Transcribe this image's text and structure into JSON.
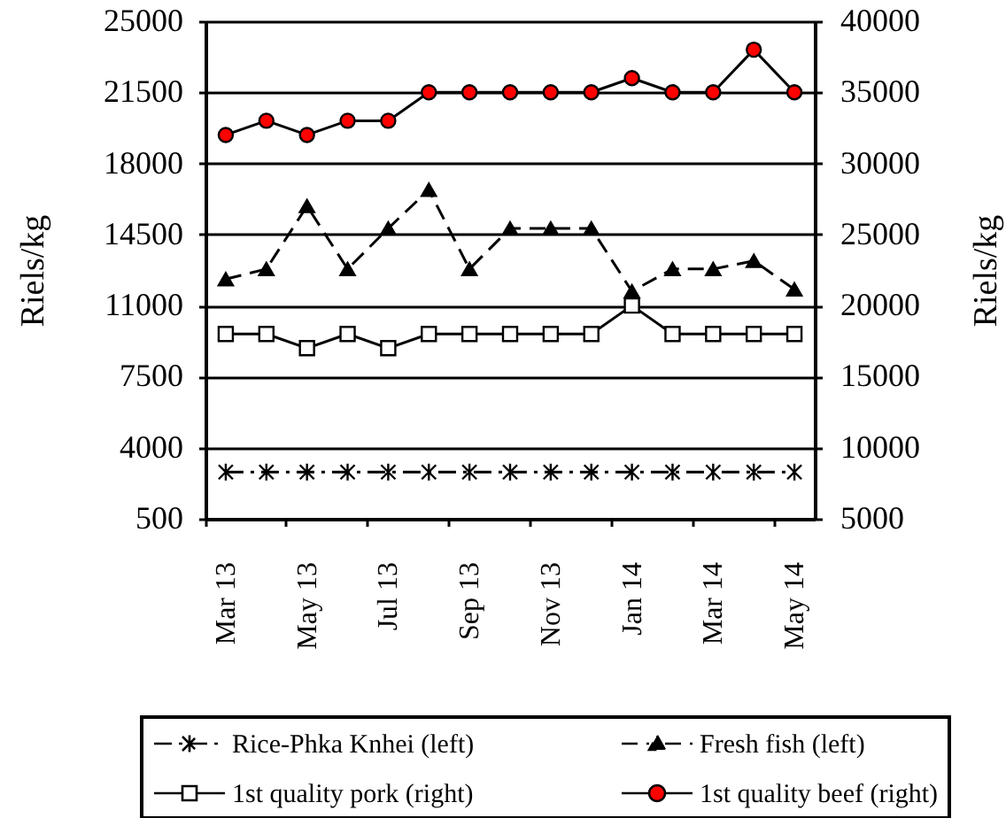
{
  "chart_data": {
    "type": "line",
    "ylabel": "Riels/kg",
    "y2label": "Riels/kg",
    "categories": [
      "Mar 13",
      null,
      "May 13",
      null,
      "Jul 13",
      null,
      "Sep 13",
      null,
      "Nov 13",
      null,
      "Jan 14",
      null,
      "Mar 14",
      null,
      "May 14"
    ],
    "ylim": [
      500,
      25000
    ],
    "yticks": [
      500,
      4000,
      7500,
      11000,
      14500,
      18000,
      21500,
      25000
    ],
    "y2lim": [
      5000,
      40000
    ],
    "y2ticks": [
      5000,
      10000,
      15000,
      20000,
      25000,
      30000,
      35000,
      40000
    ],
    "grid": "y",
    "legend": "bottom",
    "series": [
      {
        "name": "Rice-Phka Knhei (left)",
        "color": "#000000",
        "marker": "cross",
        "line_style": "dashdot",
        "values": [
          2800,
          2800,
          2800,
          2800,
          2800,
          2800,
          2800,
          2800,
          2800,
          2800,
          2800,
          2800,
          2800,
          2800,
          2800
        ]
      },
      {
        "name": "Fresh fish (left)",
        "color": "#000000",
        "marker": "triangle",
        "line_style": "dashed",
        "values": [
          12300,
          12800,
          15900,
          12800,
          14800,
          16700,
          12800,
          14800,
          14800,
          14800,
          11700,
          12800,
          12800,
          13200,
          11800
        ]
      },
      {
        "name": "1st quality pork (right)",
        "color": "#000000",
        "colors": [
          "#ffffff",
          "#ffffff",
          "#ffffff",
          "#ffffff",
          "#ffffff",
          "#ffffff",
          "#ffffff",
          "#ffffff",
          "#ffffff",
          "#ffffff",
          "#ffffff",
          "#ffffff",
          "#ffffff",
          "#ffffff",
          "#ffffff"
        ],
        "marker": "square",
        "line_style": "solid",
        "axis": "y2",
        "values": [
          18000,
          18000,
          17000,
          18000,
          17000,
          18000,
          18000,
          18000,
          18000,
          18000,
          20000,
          18000,
          18000,
          18000,
          18000
        ]
      },
      {
        "name": "1st quality beef (right)",
        "color": "#000000",
        "colors": [
          "#ff0000",
          "#ff0000",
          "#ff0000",
          "#ff0000",
          "#ff0000",
          "#ff0000",
          "#ff0000",
          "#ff0000",
          "#ff0000",
          "#ff0000",
          "#ff0000",
          "#ff0000",
          "#ff0000",
          "#ff0000",
          "#ff0000"
        ],
        "marker": "circle",
        "line_style": "solid",
        "axis": "y2",
        "values": [
          32000,
          33000,
          32000,
          33000,
          33000,
          35000,
          35000,
          35000,
          35000,
          35000,
          36000,
          35000,
          35000,
          38000,
          35000
        ]
      }
    ]
  }
}
